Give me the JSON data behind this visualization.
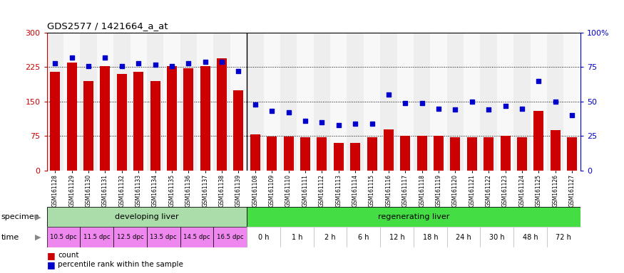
{
  "title": "GDS2577 / 1421664_a_at",
  "samples": [
    "GSM161128",
    "GSM161129",
    "GSM161130",
    "GSM161131",
    "GSM161132",
    "GSM161133",
    "GSM161134",
    "GSM161135",
    "GSM161136",
    "GSM161137",
    "GSM161138",
    "GSM161139",
    "GSM161108",
    "GSM161109",
    "GSM161110",
    "GSM161111",
    "GSM161112",
    "GSM161113",
    "GSM161114",
    "GSM161115",
    "GSM161116",
    "GSM161117",
    "GSM161118",
    "GSM161119",
    "GSM161120",
    "GSM161121",
    "GSM161122",
    "GSM161123",
    "GSM161124",
    "GSM161125",
    "GSM161126",
    "GSM161127"
  ],
  "counts": [
    215,
    235,
    195,
    228,
    210,
    215,
    195,
    228,
    222,
    228,
    245,
    175,
    78,
    74,
    74,
    72,
    72,
    60,
    60,
    72,
    90,
    75,
    75,
    75,
    72,
    72,
    72,
    75,
    72,
    130,
    88,
    72
  ],
  "percentiles": [
    78,
    82,
    76,
    82,
    76,
    78,
    77,
    76,
    78,
    79,
    79,
    72,
    48,
    43,
    42,
    36,
    35,
    33,
    34,
    34,
    55,
    49,
    49,
    45,
    44,
    50,
    44,
    47,
    45,
    65,
    50,
    40
  ],
  "bar_color": "#cc0000",
  "dot_color": "#0000cc",
  "developing_n": 12,
  "specimen_developing": "developing liver",
  "specimen_regenerating": "regenerating liver",
  "spec_dev_color": "#aaddaa",
  "spec_reg_color": "#44dd44",
  "time_color_dev": "#ee88ee",
  "time_color_reg_border": "#bbbbbb",
  "time_labels_dev": [
    "10.5 dpc",
    "11.5 dpc",
    "12.5 dpc",
    "13.5 dpc",
    "14.5 dpc",
    "16.5 dpc"
  ],
  "time_labels_reg": [
    "0 h",
    "1 h",
    "2 h",
    "6 h",
    "12 h",
    "18 h",
    "24 h",
    "30 h",
    "48 h",
    "72 h"
  ],
  "ylim_left": [
    0,
    300
  ],
  "ylim_right": [
    0,
    100
  ],
  "yticks_left": [
    0,
    75,
    150,
    225,
    300
  ],
  "yticks_right": [
    0,
    25,
    50,
    75,
    100
  ],
  "grid_vals": [
    75,
    150,
    225
  ],
  "chart_bg": "#ffffff",
  "legend_count": "count",
  "legend_percentile": "percentile rank within the sample"
}
